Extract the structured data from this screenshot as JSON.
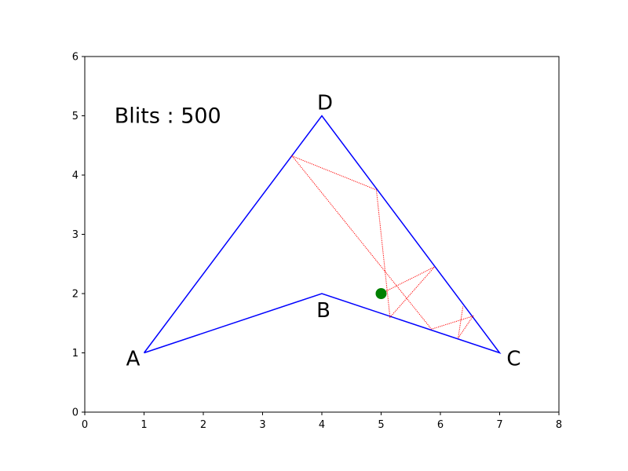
{
  "chart_data": {
    "type": "line",
    "title": "",
    "xlabel": "",
    "ylabel": "",
    "xlim": [
      0,
      8
    ],
    "ylim": [
      0,
      6
    ],
    "xticks": [
      "0",
      "1",
      "2",
      "3",
      "4",
      "5",
      "6",
      "7",
      "8"
    ],
    "yticks": [
      "0",
      "1",
      "2",
      "3",
      "4",
      "5",
      "6"
    ],
    "grid": false,
    "annotation": "Blits : 500",
    "colors": {
      "polygon": "#0000ff",
      "path": "#ff0000",
      "ball": "#008000"
    },
    "vertices": [
      {
        "name": "A",
        "x": 1,
        "y": 1
      },
      {
        "name": "B",
        "x": 4,
        "y": 2
      },
      {
        "name": "C",
        "x": 7,
        "y": 1
      },
      {
        "name": "D",
        "x": 4,
        "y": 5
      }
    ],
    "path": [
      [
        5.0,
        2.0
      ],
      [
        5.9,
        2.45
      ],
      [
        5.15,
        1.6
      ],
      [
        4.92,
        3.75
      ],
      [
        3.5,
        4.32
      ],
      [
        5.85,
        1.4
      ],
      [
        6.55,
        1.62
      ],
      [
        6.3,
        1.25
      ],
      [
        6.38,
        1.78
      ]
    ],
    "ball": {
      "x": 5.0,
      "y": 2.0
    }
  }
}
